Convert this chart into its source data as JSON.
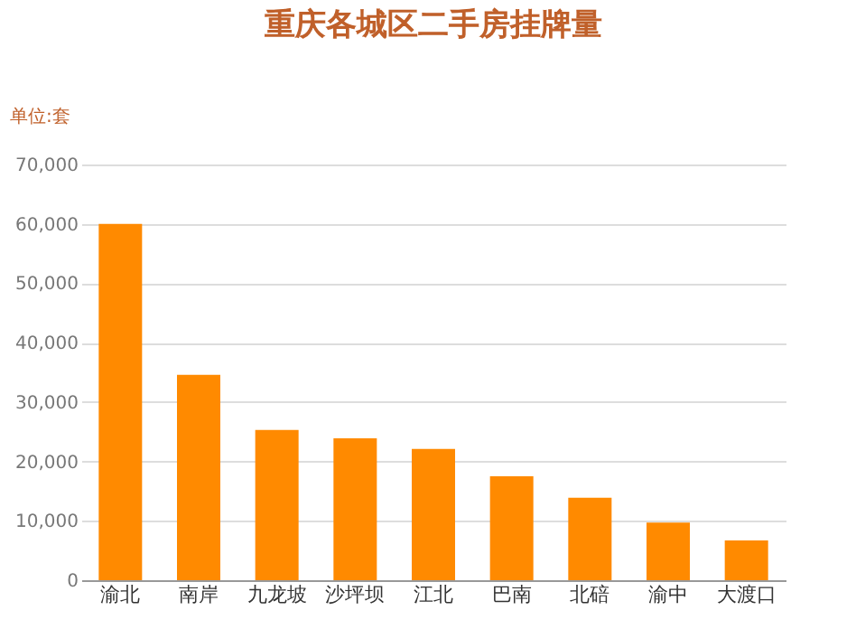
{
  "chart_data": {
    "type": "bar",
    "title": "重庆各城区二手房挂牌量",
    "ylabel": "单位:套",
    "categories": [
      "渝北",
      "南岸",
      "九龙坡",
      "沙坪坝",
      "江北",
      "巴南",
      "北碚",
      "渝中",
      "大渡口"
    ],
    "values": [
      60000,
      34600,
      25300,
      23900,
      22100,
      17500,
      13900,
      9700,
      6700
    ],
    "color": "#ff8a00",
    "ylim": [
      0,
      70000
    ],
    "yticks": [
      0,
      {
        "value": 10000,
        "label": "10,000"
      },
      {
        "value": 20000,
        "label": "20,000"
      },
      {
        "value": 30000,
        "label": "30,000"
      },
      {
        "value": 40000,
        "label": "40,000"
      },
      {
        "value": 50000,
        "label": "50,000"
      },
      {
        "value": 60000,
        "label": "60,000"
      },
      {
        "value": 70000,
        "label": "70,000"
      }
    ],
    "grid": "y"
  }
}
